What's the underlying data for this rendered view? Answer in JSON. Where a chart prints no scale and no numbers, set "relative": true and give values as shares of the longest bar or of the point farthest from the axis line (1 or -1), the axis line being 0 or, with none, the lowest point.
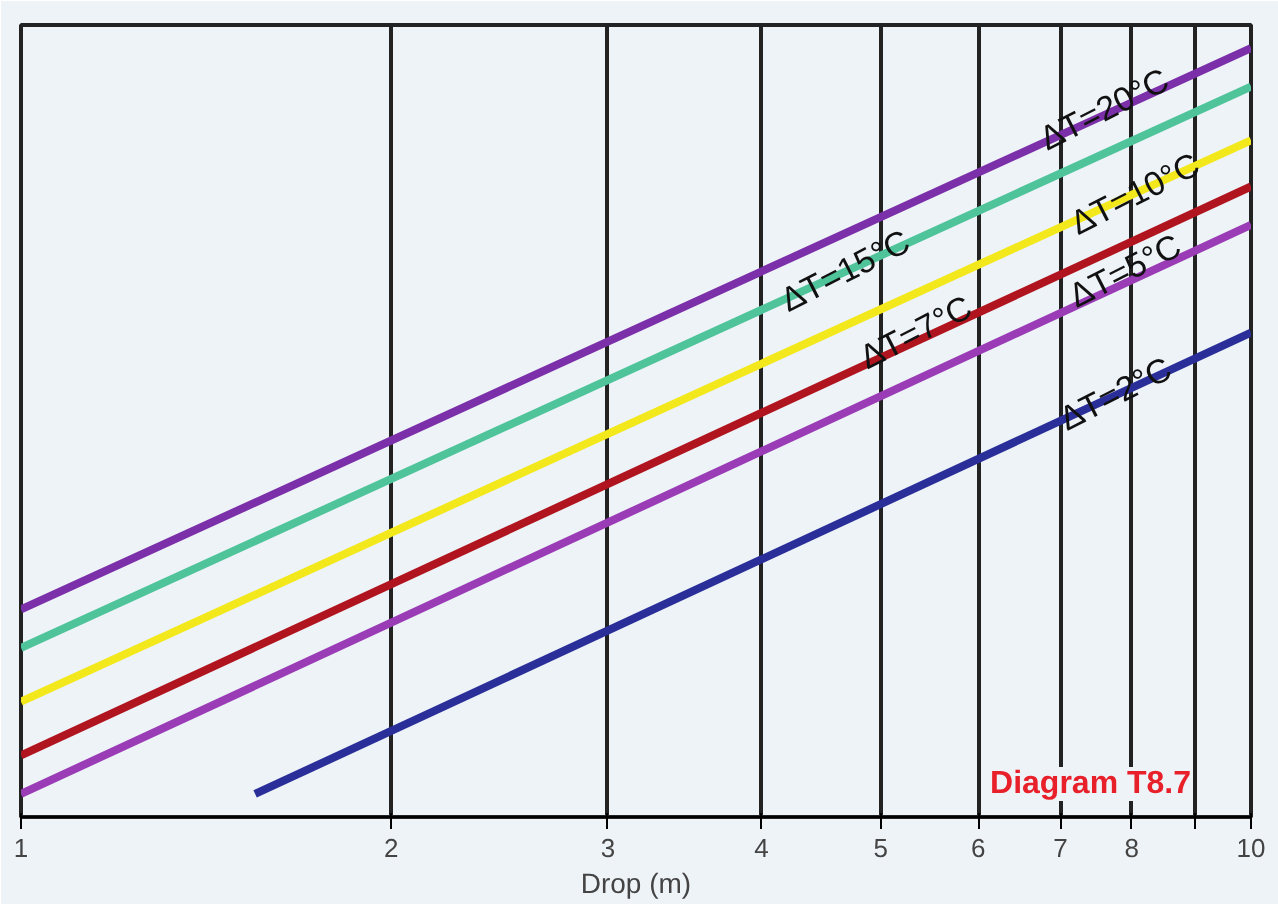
{
  "chart_data": {
    "type": "line",
    "xlabel": "Drop (m)",
    "log": "x",
    "relative": true,
    "grid": "x",
    "xlim": [
      1,
      10
    ],
    "xticks": [
      1,
      2,
      3,
      4,
      5,
      6,
      7,
      8,
      {
        "value": 9,
        "label": null
      },
      10
    ],
    "tick_labels": "x",
    "series": [
      {
        "color": "#7b2fa8",
        "x": [
          1,
          10
        ],
        "values": [
          0.27,
          1
        ]
      },
      {
        "color": "#4fc49a",
        "x": [
          1,
          10
        ],
        "values": [
          0.22,
          0.95
        ]
      },
      {
        "color": "#f2e81c",
        "x": [
          1,
          10
        ],
        "values": [
          0.15,
          0.88
        ]
      },
      {
        "color": "#b0151f",
        "x": [
          1,
          10
        ],
        "values": [
          0.08,
          0.82
        ]
      },
      {
        "color": "#9a3cb5",
        "x": [
          1,
          10
        ],
        "values": [
          0.03,
          0.77
        ]
      },
      {
        "color": "#2a2e99",
        "x": [
          1.55,
          10
        ],
        "values": [
          0.03,
          0.63
        ]
      }
    ],
    "annotations": [
      {
        "text": "ΔT=20°C",
        "x": 7.6,
        "y": 0.92
      },
      {
        "text": "ΔT=15°C",
        "x": 4.68,
        "y": 0.71
      },
      {
        "text": "ΔT=10°C",
        "x": 8.05,
        "y": 0.81
      },
      {
        "text": "ΔT=7°C",
        "x": 5.34,
        "y": 0.63
      },
      {
        "text": "ΔT=5°C",
        "x": 7.9,
        "y": 0.71
      },
      {
        "text": "ΔT=2°C",
        "x": 7.76,
        "y": 0.55
      },
      "Diagram T8.7"
    ]
  }
}
